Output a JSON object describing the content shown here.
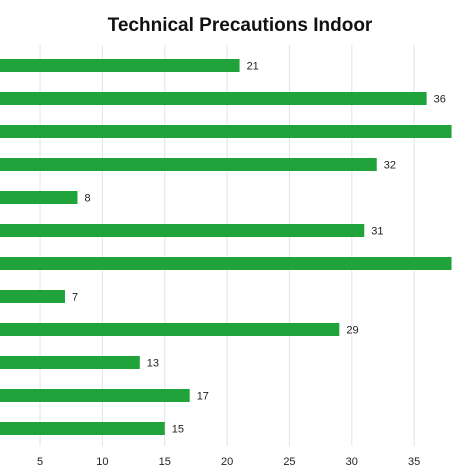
{
  "chart_data": {
    "type": "bar",
    "orientation": "horizontal",
    "title": "Technical Precautions Indoor",
    "xlabel": "",
    "ylabel": "",
    "categories": [
      "",
      "",
      "",
      "",
      "",
      "",
      "",
      "",
      "",
      "",
      "",
      ""
    ],
    "values": [
      21,
      36,
      38,
      32,
      8,
      31,
      38,
      7,
      29,
      13,
      17,
      15
    ],
    "data_labels": [
      "21",
      "36",
      "",
      "32",
      "8",
      "31",
      "",
      "7",
      "29",
      "13",
      "17",
      "15"
    ],
    "xticks": [
      5,
      10,
      15,
      20,
      25,
      30,
      35
    ],
    "grid": true,
    "bar_color": "#1fa33a",
    "grid_color": "#e3e3e3"
  }
}
